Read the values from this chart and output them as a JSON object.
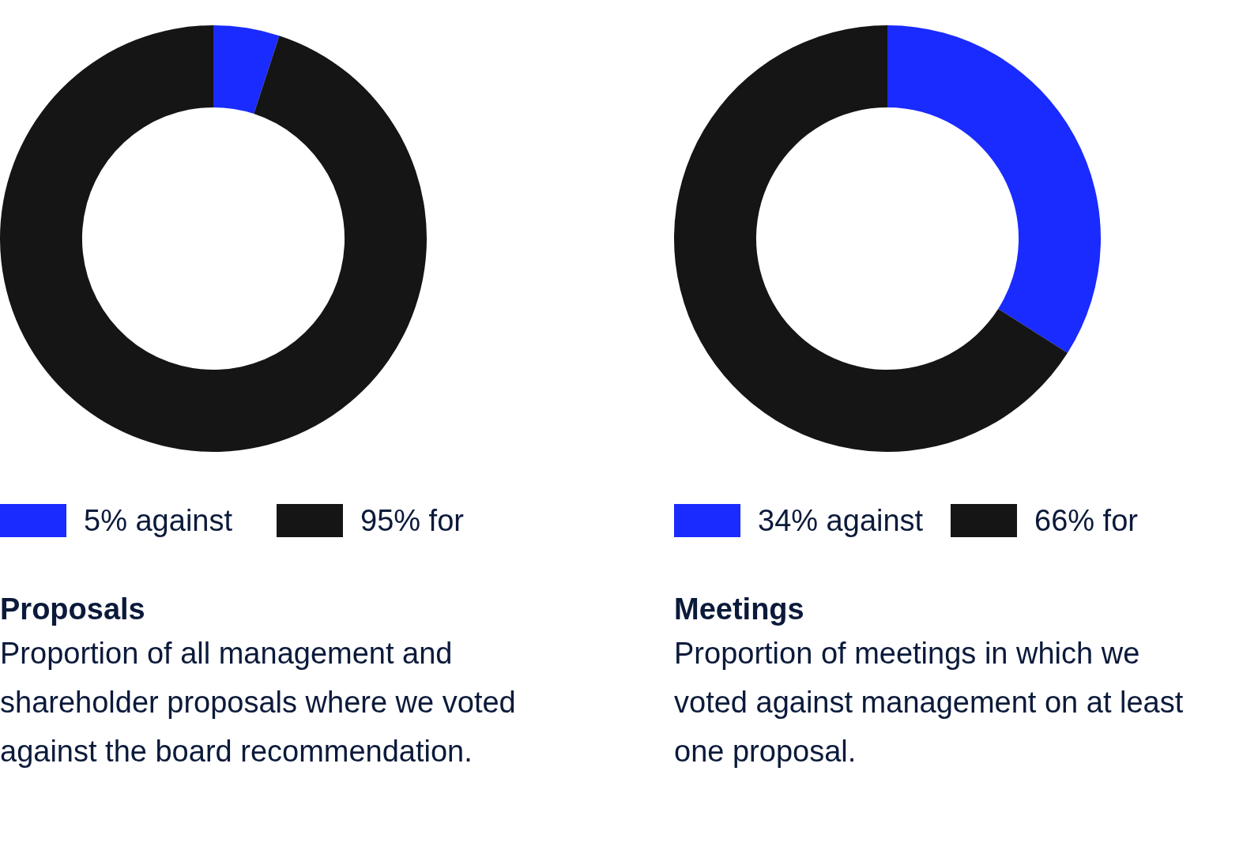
{
  "chart_data": [
    {
      "type": "donut",
      "title": "Proposals",
      "subtitle": "Proportion of all management and shareholder proposals where we voted against the board recommendation.",
      "categories": [
        "5% against",
        "95% for"
      ],
      "values": [
        5,
        95
      ],
      "colors": [
        "#1a2bff",
        "#151515"
      ],
      "legend": "bottom"
    },
    {
      "type": "donut",
      "title": "Meetings",
      "subtitle": "Proportion of meetings in which we voted against management on at least one proposal.",
      "categories": [
        "34% against",
        "66% for"
      ],
      "values": [
        34,
        66
      ],
      "colors": [
        "#1a2bff",
        "#151515"
      ],
      "legend": "bottom"
    }
  ]
}
